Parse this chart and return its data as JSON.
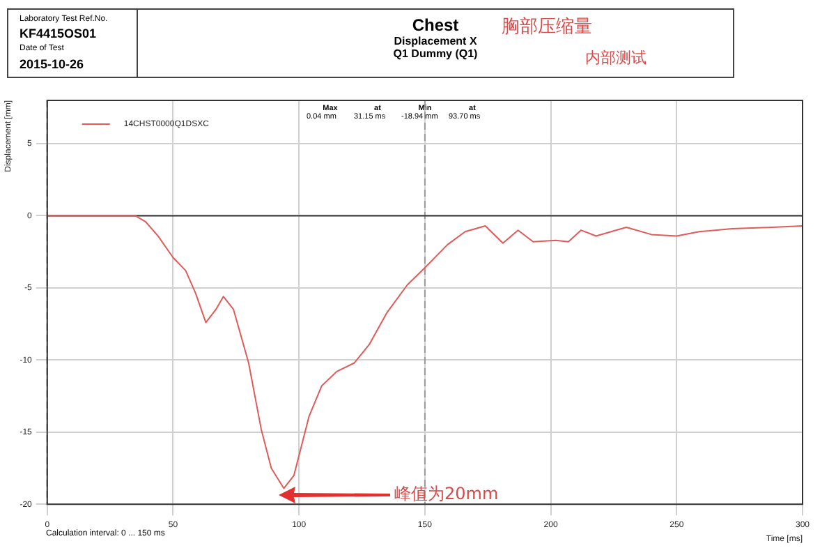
{
  "chart_data": {
    "type": "line",
    "title": "Chest",
    "subtitle": "Displacement X\nQ1 Dummy (Q1)",
    "xlabel": "Time [ms]",
    "ylabel": "Displacement [mm]",
    "annotations": [
      "Laboratory Test Ref.No.",
      "KF4415OS01",
      "Date of Test",
      "2015-10-26",
      "胸部压缩量",
      "内部测试",
      "Max",
      "at",
      "Min",
      "at",
      "0.04",
      "mm",
      "31.15",
      "ms",
      "-18.94",
      "mm",
      "93.70",
      "ms",
      "Calculation interval: 0 ... 150 ms",
      "峰值为20mm"
    ],
    "series": [
      {
        "name": "14CHST0000Q1DSXC",
        "color": "#e05a5a",
        "x": [
          0,
          10,
          20,
          31,
          35,
          39,
          44,
          50,
          55,
          59,
          63,
          67,
          70,
          74,
          80,
          85,
          89,
          94,
          98,
          104,
          109,
          115,
          122,
          128,
          135,
          143,
          150,
          159,
          166,
          174,
          181,
          187,
          193,
          202,
          207,
          212,
          218,
          230,
          240,
          250,
          259,
          272,
          288,
          300
        ],
        "values": [
          0,
          0,
          0,
          0,
          0,
          -0.4,
          -1.4,
          -2.9,
          -3.8,
          -5.4,
          -7.4,
          -6.5,
          -5.6,
          -6.5,
          -10.2,
          -14.8,
          -17.5,
          -18.9,
          -18,
          -13.9,
          -11.8,
          -10.8,
          -10.2,
          -8.9,
          -6.7,
          -4.8,
          -3.6,
          -2,
          -1.1,
          -0.7,
          -1.9,
          -1,
          -1.8,
          -1.7,
          -1.8,
          -1,
          -1.4,
          -0.8,
          -1.3,
          -1.4,
          -1.1,
          -0.9,
          -0.8,
          -0.7
        ]
      }
    ],
    "xlim": [
      0,
      300
    ],
    "xticks": [
      0,
      50,
      100,
      150,
      200,
      250,
      300
    ],
    "ylim": [
      -20,
      8
    ],
    "yticks": [
      -20,
      -15,
      -10,
      -5,
      0,
      5
    ],
    "ref_lines": [
      {
        "axis": "x",
        "value": 0,
        "color": "#777777",
        "line_style": "dashed"
      },
      {
        "axis": "x",
        "value": 150,
        "color": "#999999",
        "line_style": "dashed"
      },
      {
        "axis": "y",
        "value": 0,
        "color": "#333333",
        "line_style": "solid"
      }
    ],
    "grid": true,
    "legend": "top left",
    "marker": "none",
    "line_style": "solid"
  }
}
